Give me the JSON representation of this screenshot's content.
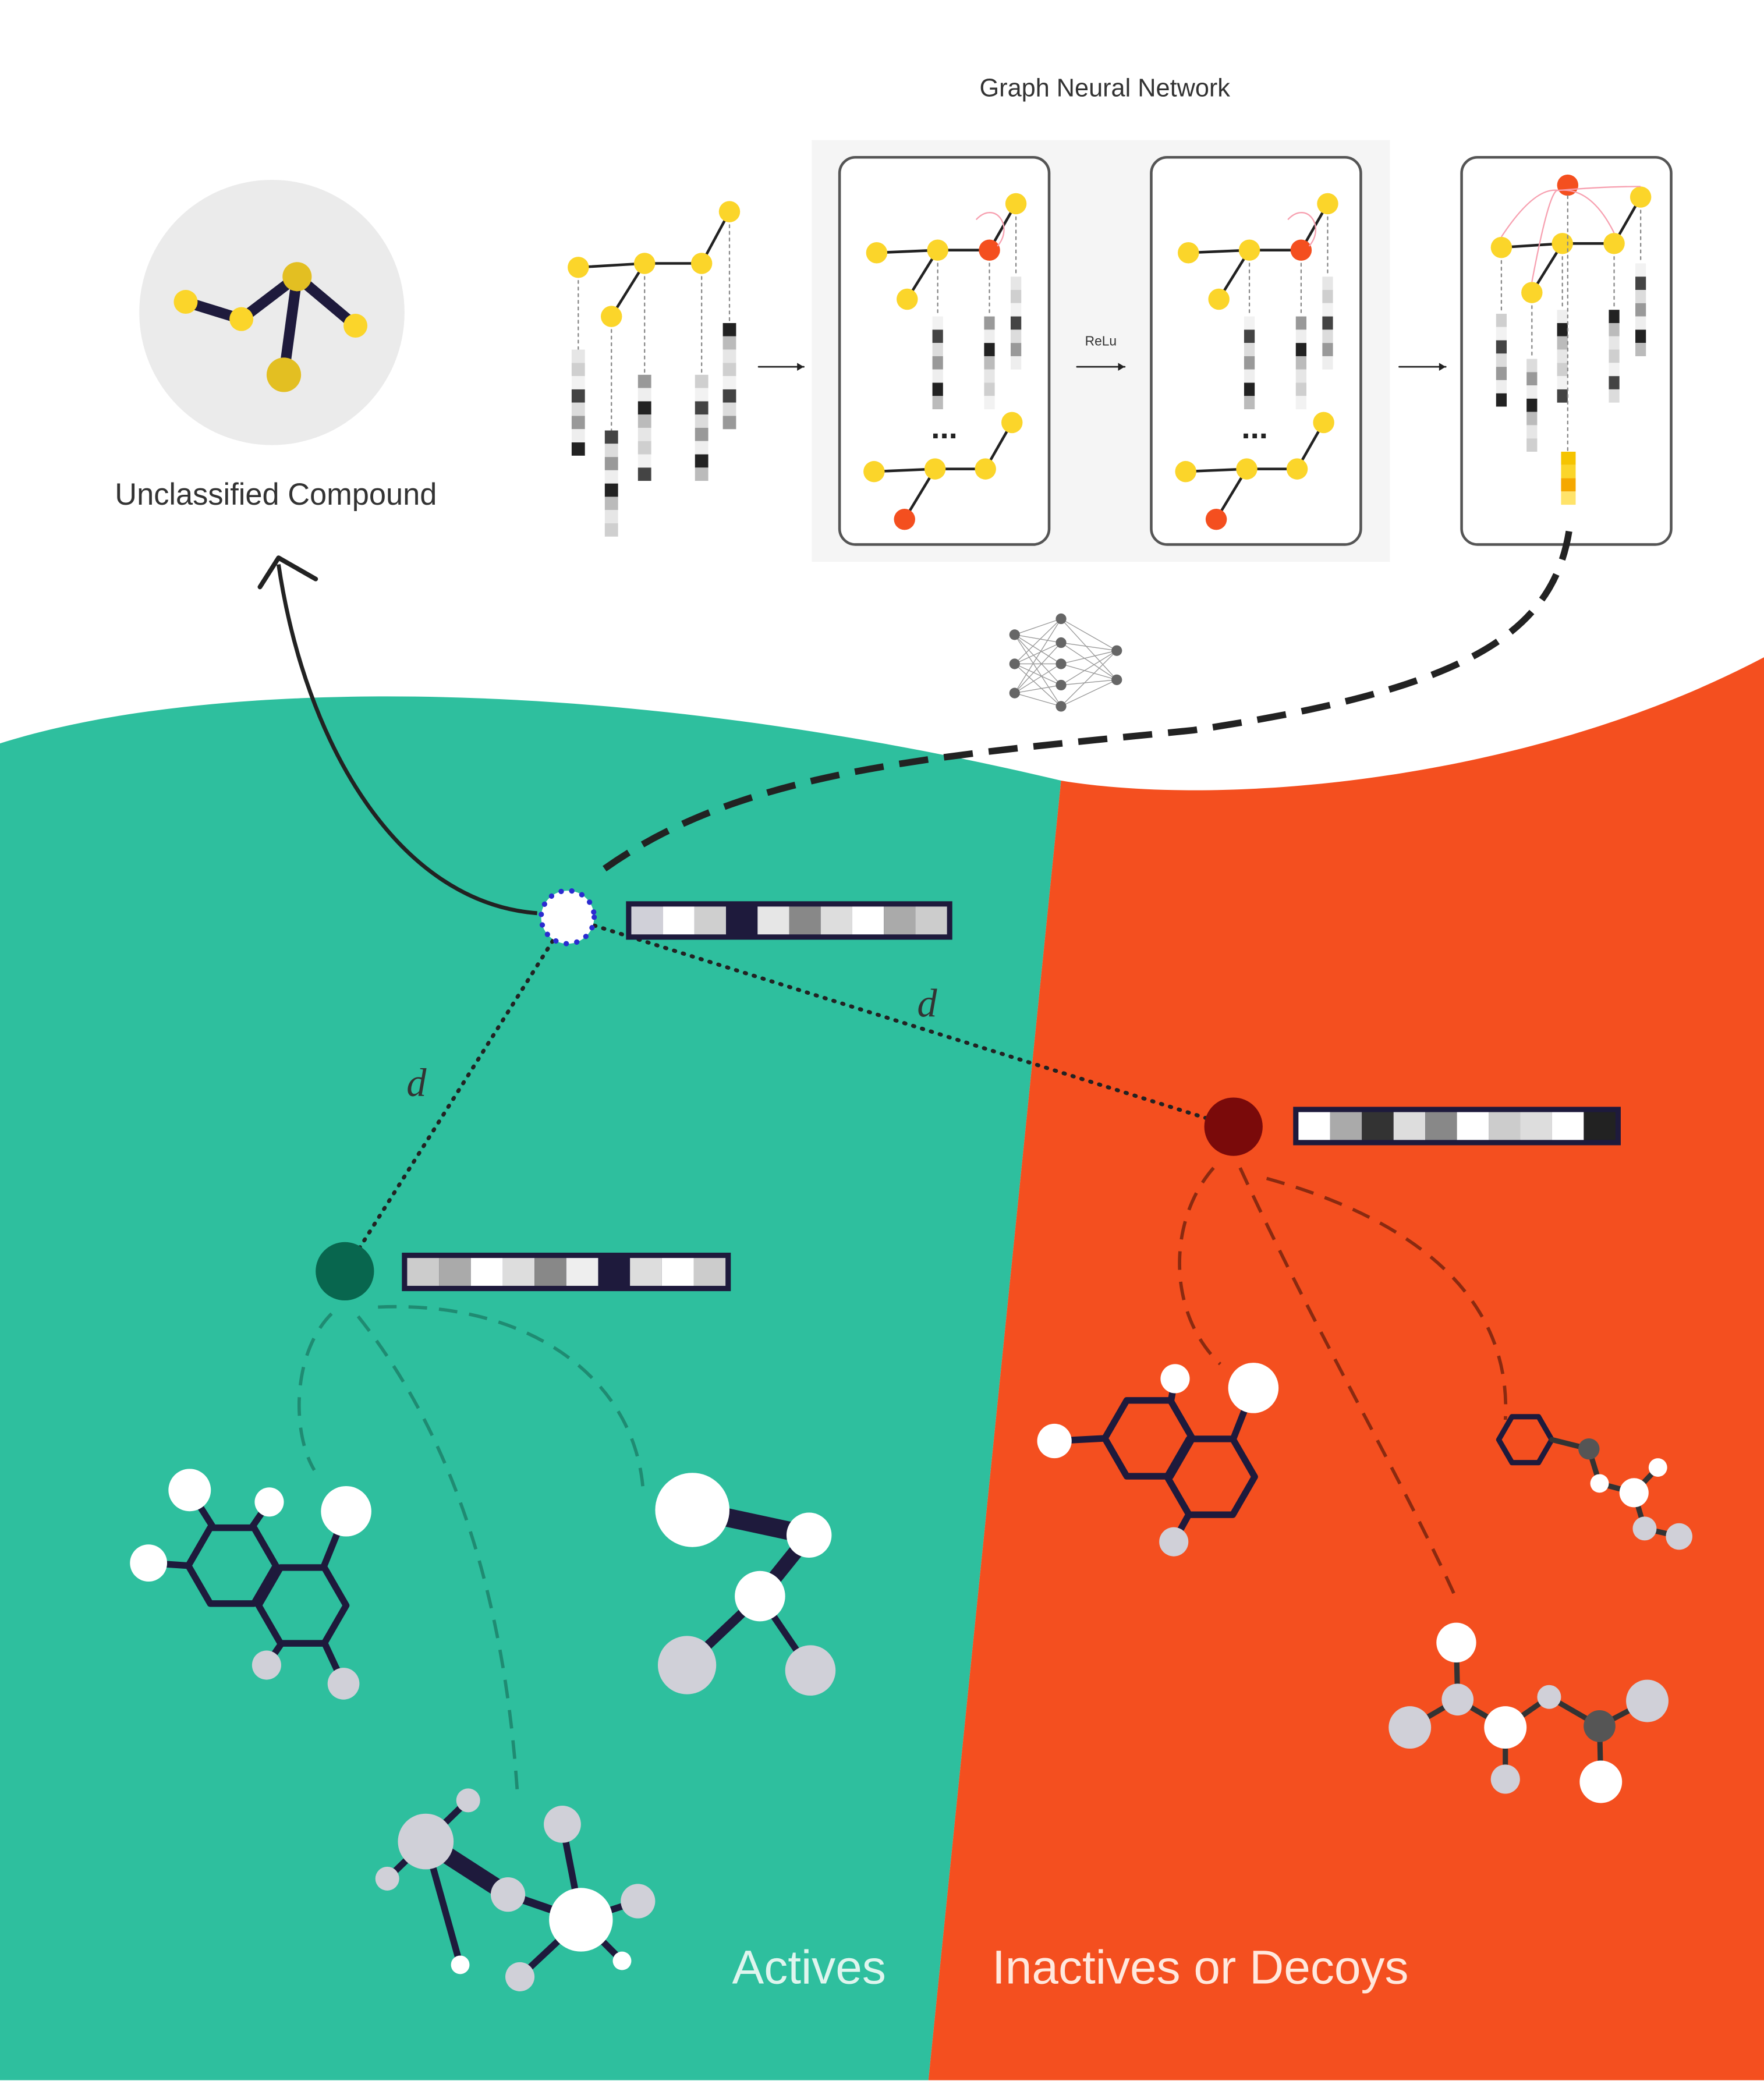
{
  "header": {
    "title": "Graph Neural Network"
  },
  "compound": {
    "label": "Unclassified Compound"
  },
  "gnn": {
    "activation_label": "ReLu",
    "ellipses": [
      "...",
      "..."
    ]
  },
  "distances": [
    "d",
    "d"
  ],
  "regions": {
    "actives": "Actives",
    "inactives": "Inactives or Decoys"
  }
}
